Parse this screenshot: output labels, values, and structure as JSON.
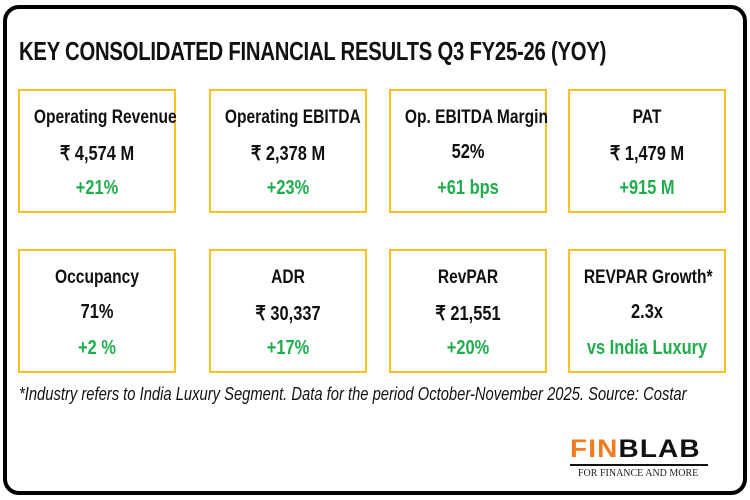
{
  "title": "KEY CONSOLIDATED FINANCIAL RESULTS Q3 FY25-26 (YOY)",
  "cards": [
    {
      "label": "Operating Revenue",
      "value": "₹ 4,574 M",
      "change": "+21%"
    },
    {
      "label": "Operating EBITDA",
      "value": "₹ 2,378 M",
      "change": "+23%"
    },
    {
      "label": "Op. EBITDA Margin",
      "value": "52%",
      "change": "+61 bps"
    },
    {
      "label": "PAT",
      "value": "₹ 1,479 M",
      "change": "+915 M"
    },
    {
      "label": "Occupancy",
      "value": "71%",
      "change": "+2 %"
    },
    {
      "label": "ADR",
      "value": "₹ 30,337",
      "change": "+17%"
    },
    {
      "label": "RevPAR",
      "value": "₹ 21,551",
      "change": "+20%"
    },
    {
      "label": "REVPAR Growth*",
      "value": "2.3x",
      "change": "vs India Luxury"
    }
  ],
  "footnote": "*Industry refers to India Luxury Segment. Data for the period October-November 2025. Source: Costar",
  "logo": {
    "fin": "FIN",
    "blab": "BLAB",
    "tagline": "FOR FINANCE AND MORE"
  },
  "colors": {
    "accent_border": "#fbc21a",
    "positive": "#1fae4b",
    "logo_orange": "#f47b20"
  }
}
